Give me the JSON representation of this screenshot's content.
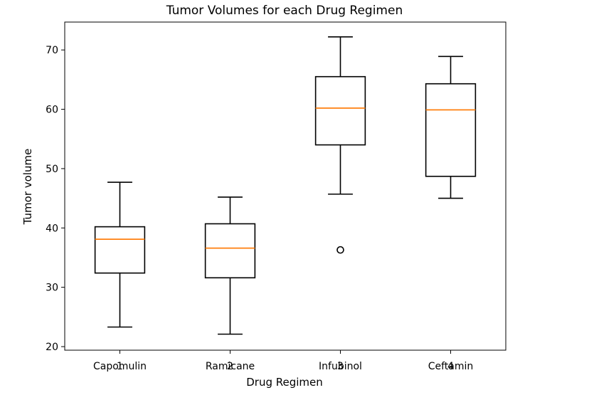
{
  "chart_data": {
    "type": "box",
    "title": "Tumor Volumes for each Drug Regimen",
    "xlabel": "Drug Regimen",
    "ylabel": "Tumor volume",
    "ylim": [
      19.4,
      74.7
    ],
    "yticks": [
      20,
      30,
      40,
      50,
      60,
      70
    ],
    "xticks": [
      "1",
      "2",
      "3",
      "4"
    ],
    "categories": [
      "Capomulin",
      "Ramicane",
      "Infubinol",
      "Ceftamin"
    ],
    "boxes": [
      {
        "q1": 32.4,
        "median": 38.1,
        "q3": 40.2,
        "whislo": 23.3,
        "whishi": 47.7,
        "fliers": []
      },
      {
        "q1": 31.6,
        "median": 36.6,
        "q3": 40.7,
        "whislo": 22.1,
        "whishi": 45.2,
        "fliers": []
      },
      {
        "q1": 54.0,
        "median": 60.2,
        "q3": 65.5,
        "whislo": 45.7,
        "whishi": 72.2,
        "fliers": [
          36.3
        ]
      },
      {
        "q1": 48.7,
        "median": 59.9,
        "q3": 64.3,
        "whislo": 45.0,
        "whishi": 68.9,
        "fliers": []
      }
    ],
    "colors": {
      "box": "#000000",
      "median": "#ff7f0e",
      "axes": "#000000"
    },
    "grid": false
  }
}
